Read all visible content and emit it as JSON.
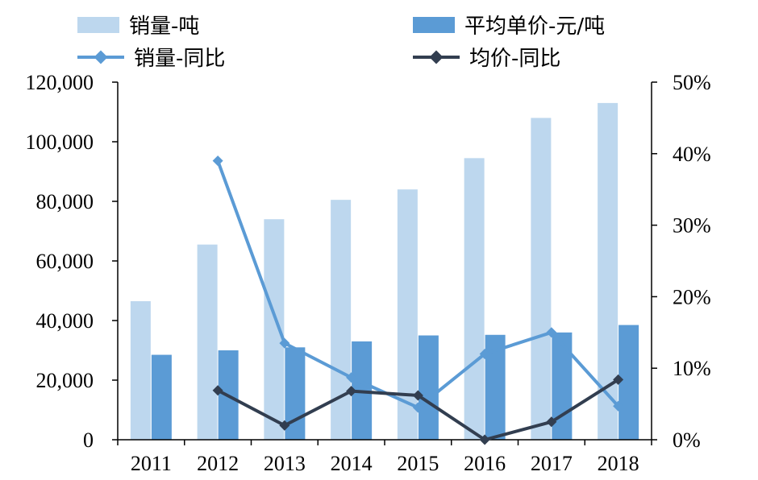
{
  "chart_data": {
    "type": "bar",
    "categories": [
      "2011",
      "2012",
      "2013",
      "2014",
      "2015",
      "2016",
      "2017",
      "2018"
    ],
    "series": [
      {
        "name": "销量-吨",
        "kind": "bar",
        "axis": "left",
        "color": "#bdd7ee",
        "values": [
          46500,
          65500,
          74000,
          80500,
          84000,
          94500,
          108000,
          113000
        ]
      },
      {
        "name": "平均单价-元/吨",
        "kind": "bar",
        "axis": "left",
        "color": "#5b9bd5",
        "values": [
          28500,
          30000,
          31000,
          33000,
          35000,
          35200,
          36000,
          38500
        ]
      },
      {
        "name": "销量-同比",
        "kind": "line",
        "axis": "right",
        "color": "#5b9bd5",
        "values": [
          null,
          0.39,
          0.135,
          0.087,
          0.045,
          0.12,
          0.15,
          0.047
        ]
      },
      {
        "name": "均价-同比",
        "kind": "line",
        "axis": "right",
        "color": "#323e50",
        "values": [
          null,
          0.069,
          0.02,
          0.068,
          0.062,
          0.0,
          0.025,
          0.084
        ]
      }
    ],
    "y_left": {
      "min": 0,
      "max": 120000,
      "step": 20000,
      "tick_labels": [
        "0",
        "20,000",
        "40,000",
        "60,000",
        "80,000",
        "100,000",
        "120,000"
      ]
    },
    "y_right": {
      "min": 0,
      "max": 0.5,
      "step": 0.1,
      "tick_labels": [
        "0%",
        "10%",
        "20%",
        "30%",
        "40%",
        "50%"
      ]
    },
    "grid": false,
    "legend_position": "top"
  }
}
